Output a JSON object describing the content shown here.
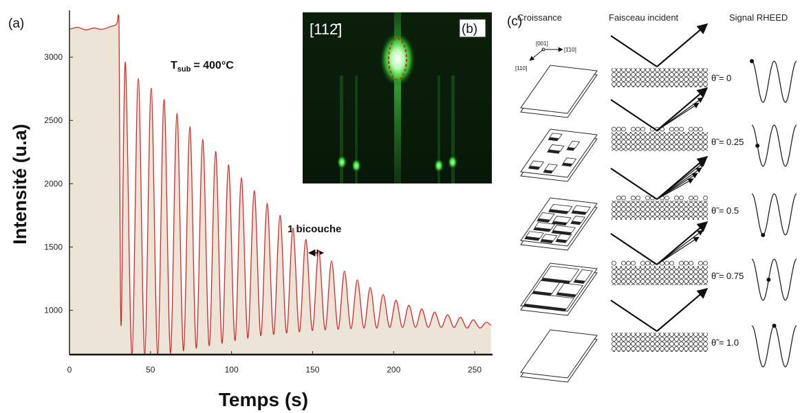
{
  "chart_data": {
    "type": "line",
    "panel_label": "(a)",
    "annotation": {
      "base": "T",
      "subscript": "sub",
      "text": "= 400°C"
    },
    "period_label": "1 bicouche",
    "x_label": "Temps (s)",
    "y_label": "Intensité (u.a)",
    "x": [
      0,
      5,
      10,
      15,
      20,
      25,
      29,
      30.5,
      31.8,
      34.5,
      38.5,
      42.45,
      46.4,
      50.4,
      54.4,
      58.35,
      62.3,
      66.3,
      70.3,
      74.25,
      78.2,
      82.2,
      86.2,
      90.15,
      94.1,
      98.1,
      102.1,
      106.05,
      110,
      114,
      118,
      121.95,
      125.9,
      129.9,
      133.9,
      137.85,
      141.8,
      145.8,
      149.8,
      153.75,
      157.7,
      161.7,
      165.7,
      169.65,
      173.6,
      177.6,
      181.6,
      185.55,
      189.5,
      193.5,
      197.5,
      201.45,
      205.4,
      209.4,
      213.4,
      217.35,
      221.3,
      225.3,
      229.3,
      233.25,
      237.2,
      241.2,
      245.2,
      249.15,
      253.1,
      257.1,
      260
    ],
    "values": [
      3220,
      3235,
      3215,
      3230,
      3220,
      3240,
      3260,
      3320,
      880,
      2960,
      650,
      2830,
      650,
      2755,
      650,
      2665,
      660,
      2555,
      680,
      2450,
      700,
      2350,
      720,
      2255,
      740,
      2150,
      760,
      2045,
      780,
      1945,
      800,
      1845,
      810,
      1750,
      820,
      1650,
      830,
      1560,
      840,
      1470,
      845,
      1390,
      850,
      1310,
      855,
      1240,
      860,
      1180,
      860,
      1125,
      865,
      1080,
      865,
      1040,
      865,
      1010,
      865,
      985,
      865,
      965,
      865,
      945,
      860,
      925,
      860,
      905,
      880
    ],
    "color": "#d42a2a",
    "fill_color": "#ece4d6",
    "xlim": [
      0,
      261
    ],
    "ylim": [
      650,
      3370
    ],
    "xticks": [
      0,
      50,
      100,
      150,
      200,
      250
    ],
    "yticks": [
      1000,
      1500,
      2000,
      2500,
      3000
    ]
  },
  "panel_b": {
    "label": "(b)",
    "direction": "[112̄]"
  },
  "panel_c": {
    "label": "(c)",
    "headers": [
      "Croissance",
      "Faisceau incident",
      "Signal RHEED"
    ],
    "axes": [
      "[001]",
      "[1̄10]",
      "[110]"
    ],
    "coverage": [
      "θ̃ = 0",
      "θ̃ = 0.25",
      "θ̃ = 0.5",
      "θ̃ = 0.75",
      "θ̃ = 1.0"
    ]
  }
}
